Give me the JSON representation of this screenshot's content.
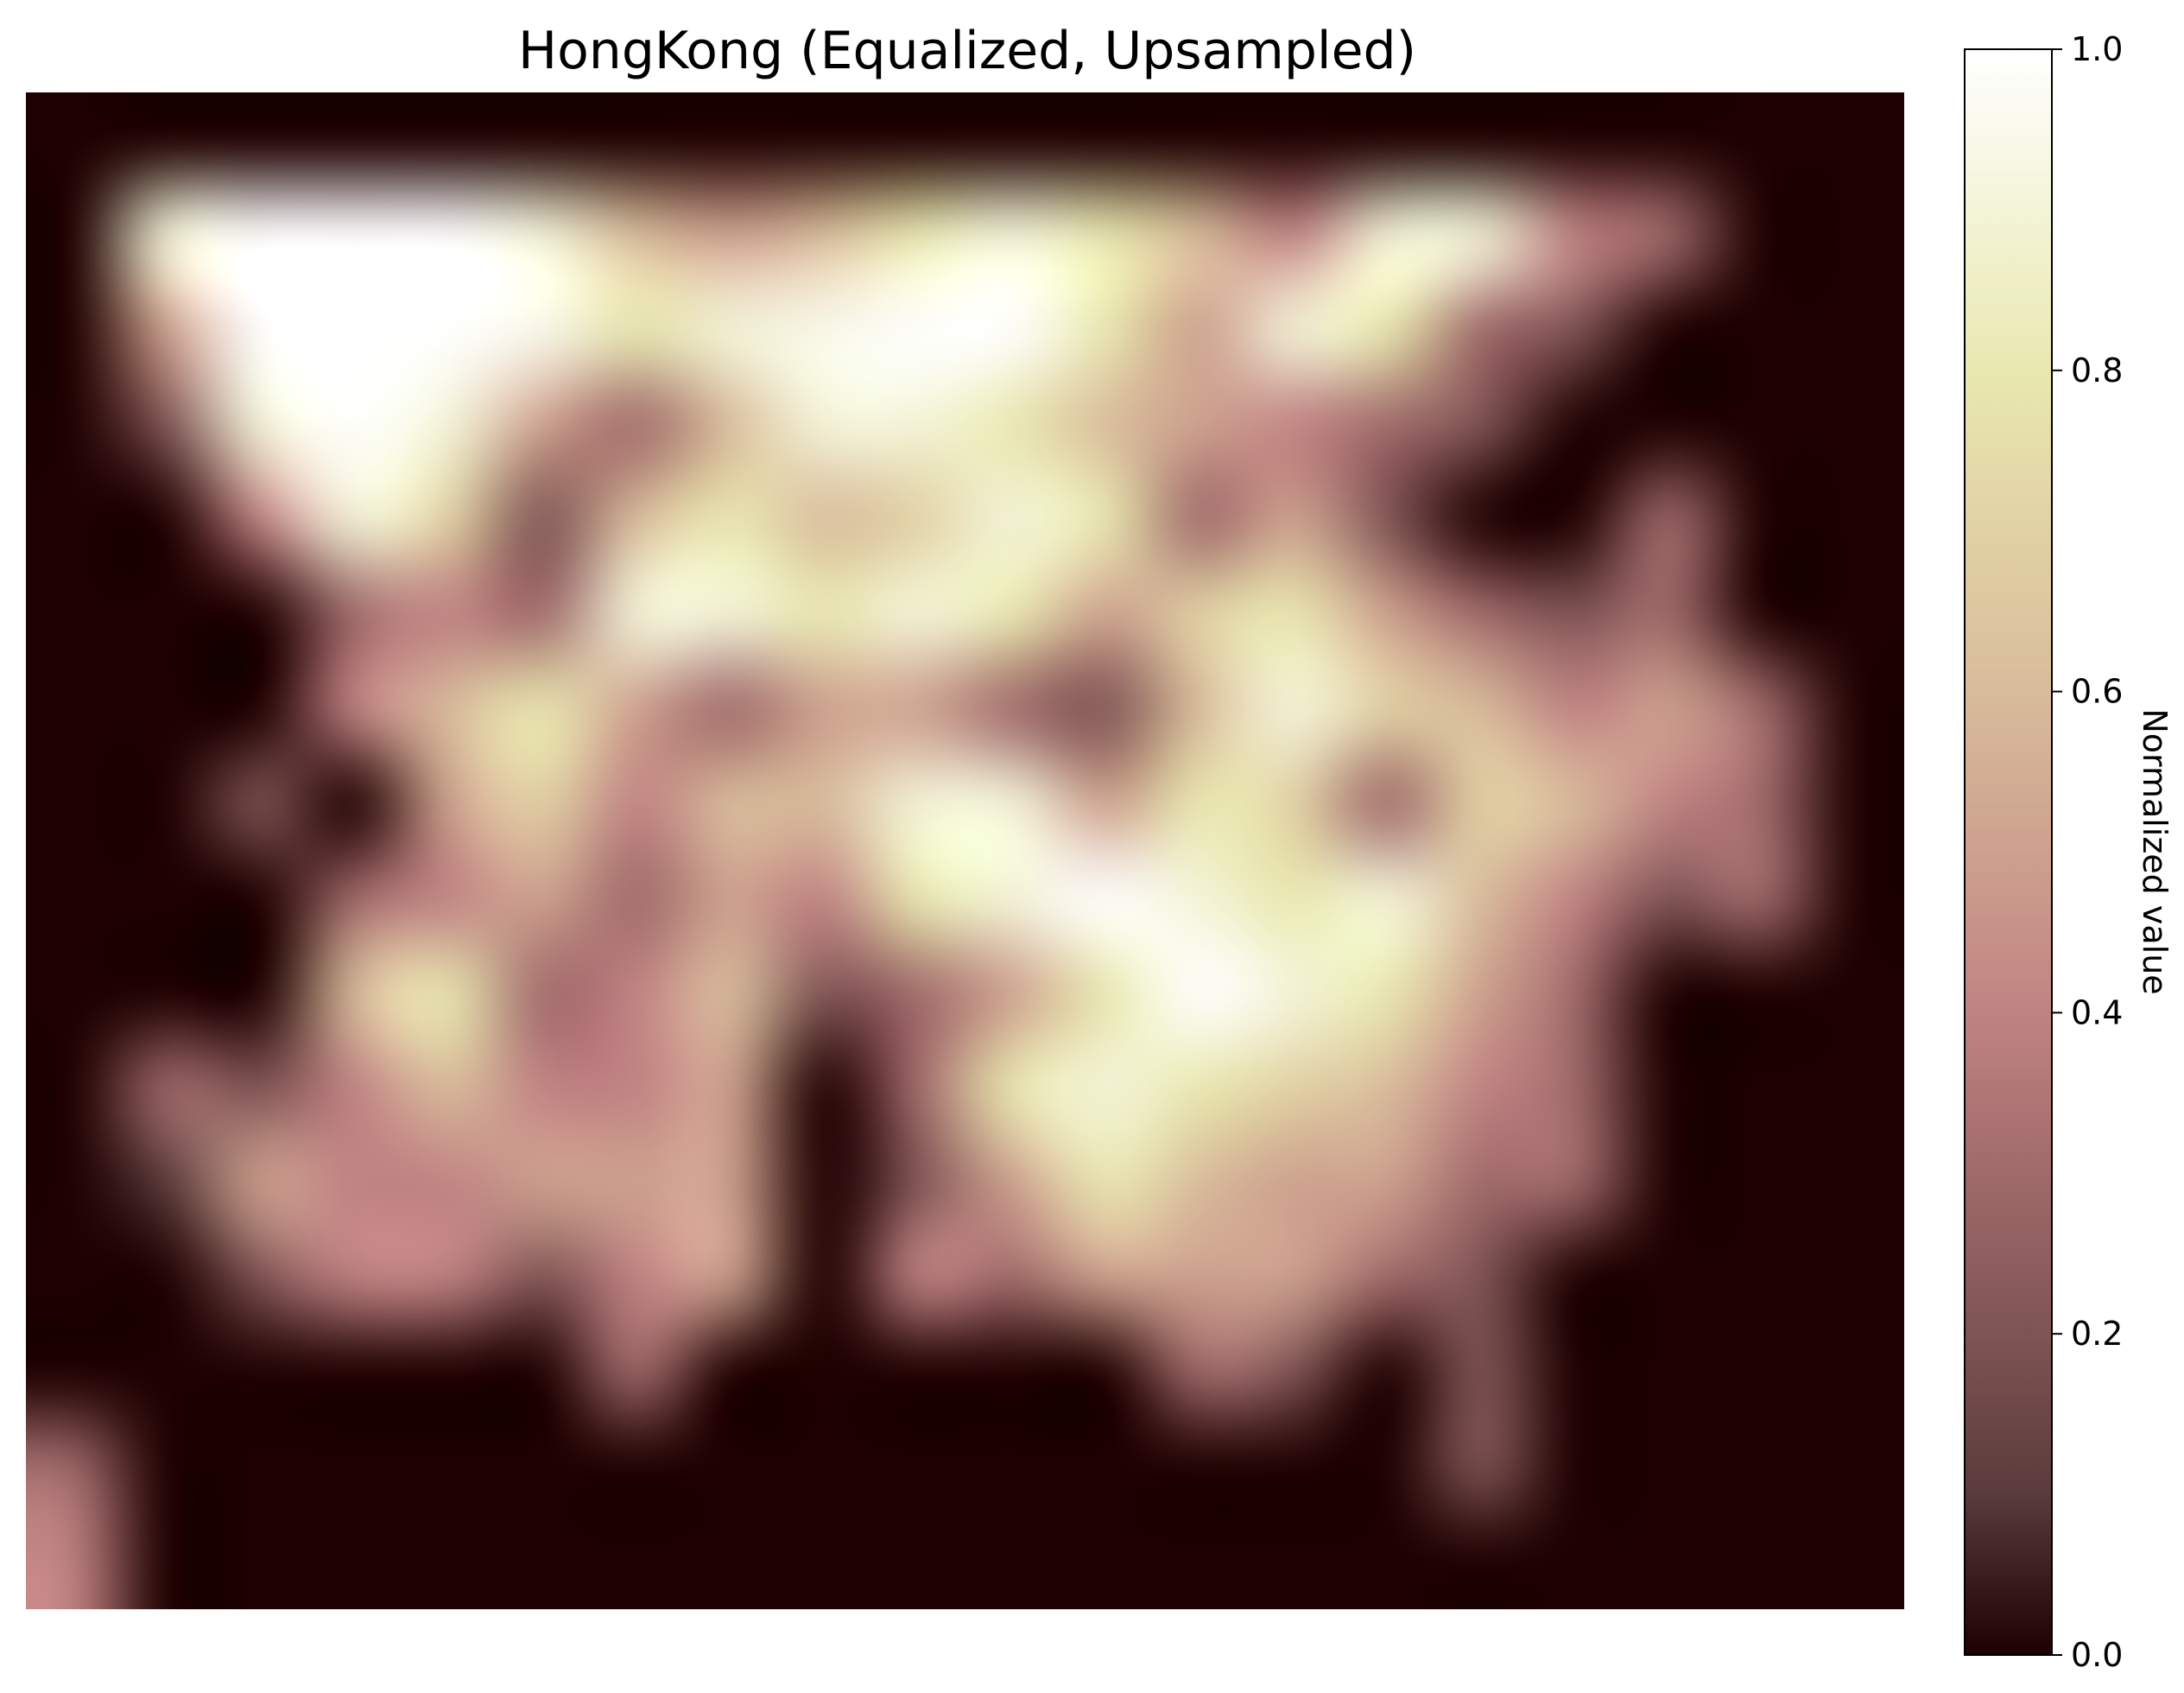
{
  "chart_data": {
    "type": "heatmap",
    "title": "HongKong (Equalized, Upsampled)",
    "axes_visible": false,
    "colormap": "pink",
    "colormap_stops": [
      {
        "v": 0.0,
        "color": "#1e0000"
      },
      {
        "v": 0.1,
        "color": "#5a3b3b"
      },
      {
        "v": 0.2,
        "color": "#7f5454"
      },
      {
        "v": 0.3,
        "color": "#a06a6a"
      },
      {
        "v": 0.4,
        "color": "#c08383"
      },
      {
        "v": 0.5,
        "color": "#cda18e"
      },
      {
        "v": 0.6,
        "color": "#d8bc9b"
      },
      {
        "v": 0.7,
        "color": "#e1d1a4"
      },
      {
        "v": 0.8,
        "color": "#e9e8b0"
      },
      {
        "v": 0.9,
        "color": "#f4f4d8"
      },
      {
        "v": 1.0,
        "color": "#ffffff"
      }
    ],
    "colorbar": {
      "label": "Normalized value",
      "range": [
        0.0,
        1.0
      ],
      "ticks": [
        {
          "value": 0.0,
          "label": "0.0"
        },
        {
          "value": 0.2,
          "label": "0.2"
        },
        {
          "value": 0.4,
          "label": "0.4"
        },
        {
          "value": 0.6,
          "label": "0.6"
        },
        {
          "value": 0.8,
          "label": "0.8"
        },
        {
          "value": 1.0,
          "label": "1.0"
        }
      ]
    },
    "grid": {
      "cols": 20,
      "rows": 16,
      "values": [
        [
          0.0,
          0.0,
          0.0,
          0.0,
          0.0,
          0.0,
          0.0,
          0.0,
          0.0,
          0.0,
          0.0,
          0.0,
          0.0,
          0.0,
          0.0,
          0.0,
          0.0,
          0.0,
          0.0,
          0.0
        ],
        [
          0.0,
          0.9,
          1.0,
          1.0,
          1.0,
          0.9,
          0.6,
          0.5,
          0.6,
          0.8,
          0.9,
          0.8,
          0.6,
          0.4,
          0.9,
          0.9,
          0.4,
          0.3,
          0.0,
          0.0
        ],
        [
          0.0,
          0.5,
          1.0,
          1.0,
          1.0,
          0.95,
          0.8,
          0.9,
          0.95,
          1.0,
          1.0,
          0.8,
          0.5,
          0.9,
          0.8,
          0.3,
          0.2,
          0.0,
          0.0,
          0.0
        ],
        [
          0.0,
          0.2,
          0.9,
          1.0,
          0.9,
          0.5,
          0.3,
          0.6,
          0.9,
          0.9,
          0.8,
          0.6,
          0.5,
          0.4,
          0.3,
          0.2,
          0.0,
          0.0,
          0.0,
          0.0
        ],
        [
          0.0,
          0.0,
          0.4,
          0.9,
          0.7,
          0.2,
          0.6,
          0.8,
          0.6,
          0.7,
          0.9,
          0.8,
          0.3,
          0.5,
          0.2,
          0.0,
          0.0,
          0.3,
          0.0,
          0.0
        ],
        [
          0.0,
          0.0,
          0.0,
          0.3,
          0.4,
          0.3,
          0.9,
          0.9,
          0.8,
          0.9,
          0.8,
          0.5,
          0.7,
          0.8,
          0.5,
          0.3,
          0.2,
          0.3,
          0.0,
          0.0
        ],
        [
          0.0,
          0.0,
          0.0,
          0.4,
          0.6,
          0.8,
          0.5,
          0.3,
          0.5,
          0.5,
          0.3,
          0.2,
          0.6,
          0.9,
          0.7,
          0.6,
          0.4,
          0.5,
          0.3,
          0.0
        ],
        [
          0.0,
          0.0,
          0.2,
          0.0,
          0.5,
          0.7,
          0.4,
          0.6,
          0.6,
          0.9,
          0.9,
          0.5,
          0.8,
          0.7,
          0.3,
          0.7,
          0.6,
          0.4,
          0.3,
          0.0
        ],
        [
          0.0,
          0.0,
          0.0,
          0.3,
          0.4,
          0.5,
          0.3,
          0.5,
          0.4,
          0.8,
          0.9,
          1.0,
          0.9,
          0.8,
          0.9,
          0.6,
          0.4,
          0.2,
          0.3,
          0.0
        ],
        [
          0.0,
          0.0,
          0.0,
          0.6,
          0.8,
          0.3,
          0.4,
          0.6,
          0.2,
          0.3,
          0.5,
          0.8,
          1.0,
          0.9,
          0.8,
          0.5,
          0.3,
          0.0,
          0.0,
          0.0
        ],
        [
          0.0,
          0.3,
          0.2,
          0.4,
          0.6,
          0.4,
          0.4,
          0.5,
          0.0,
          0.3,
          0.8,
          0.9,
          0.8,
          0.7,
          0.6,
          0.4,
          0.3,
          0.0,
          0.0,
          0.0
        ],
        [
          0.0,
          0.1,
          0.5,
          0.4,
          0.4,
          0.5,
          0.5,
          0.5,
          0.0,
          0.2,
          0.5,
          0.8,
          0.6,
          0.5,
          0.5,
          0.3,
          0.3,
          0.0,
          0.0,
          0.0
        ],
        [
          0.0,
          0.0,
          0.2,
          0.4,
          0.4,
          0.2,
          0.4,
          0.5,
          0.0,
          0.4,
          0.3,
          0.5,
          0.5,
          0.5,
          0.3,
          0.2,
          0.0,
          0.0,
          0.0,
          0.0
        ],
        [
          0.0,
          0.0,
          0.0,
          0.0,
          0.0,
          0.0,
          0.3,
          0.0,
          0.0,
          0.0,
          0.0,
          0.0,
          0.3,
          0.2,
          0.0,
          0.2,
          0.0,
          0.0,
          0.0,
          0.0
        ],
        [
          0.3,
          0.0,
          0.0,
          0.0,
          0.0,
          0.0,
          0.0,
          0.0,
          0.0,
          0.0,
          0.0,
          0.0,
          0.0,
          0.0,
          0.0,
          0.2,
          0.0,
          0.0,
          0.0,
          0.0
        ],
        [
          0.4,
          0.0,
          0.0,
          0.0,
          0.0,
          0.0,
          0.0,
          0.0,
          0.0,
          0.0,
          0.0,
          0.0,
          0.0,
          0.0,
          0.0,
          0.0,
          0.0,
          0.0,
          0.0,
          0.0
        ]
      ]
    }
  }
}
